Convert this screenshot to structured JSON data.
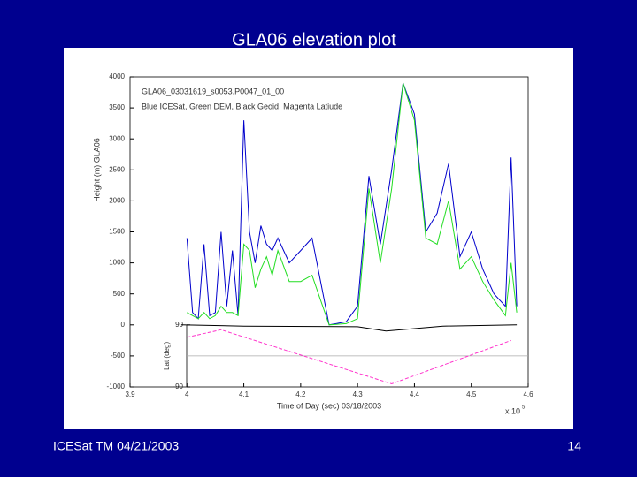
{
  "slide": {
    "title": "GLA06 elevation plot",
    "footer": "ICESat TM 04/21/2003",
    "page": "14"
  },
  "chart_data": {
    "type": "line",
    "title": "GLA06_03031619_s0053.P0047_01_00",
    "subtitle": "Blue ICESat, Green DEM, Black Geoid, Magenta Latiude",
    "x_label": "Time of Day (sec) 03/18/2003",
    "y_label": "Height (m) GLA06",
    "y2_label": "Lat (deg)",
    "x_scale_label": "x 10",
    "x_scale_exponent": "5",
    "xlim": [
      3.9,
      4.6
    ],
    "xticks": [
      3.9,
      4,
      4.1,
      4.2,
      4.3,
      4.4,
      4.5,
      4.6
    ],
    "ylim": [
      -1000,
      4000
    ],
    "yticks": [
      -1000,
      -500,
      0,
      500,
      1000,
      1500,
      2000,
      2500,
      3000,
      3500,
      4000
    ],
    "y2lim": [
      -90,
      90
    ],
    "y2ticks": [
      -90,
      90
    ],
    "series": [
      {
        "color": "#0000cc",
        "x": [
          4.0,
          4.01,
          4.02,
          4.03,
          4.04,
          4.05,
          4.06,
          4.07,
          4.08,
          4.09,
          4.1,
          4.11,
          4.12,
          4.13,
          4.14,
          4.15,
          4.16,
          4.18,
          4.2,
          4.22,
          4.25,
          4.28,
          4.3,
          4.32,
          4.34,
          4.36,
          4.38,
          4.4,
          4.42,
          4.44,
          4.46,
          4.48,
          4.5,
          4.52,
          4.54,
          4.56,
          4.57,
          4.58
        ],
        "values": [
          1400,
          200,
          100,
          1300,
          150,
          200,
          1500,
          300,
          1200,
          150,
          3300,
          1500,
          1000,
          1600,
          1300,
          1200,
          1400,
          1000,
          1200,
          1400,
          0,
          50,
          300,
          2400,
          1300,
          2500,
          3900,
          3400,
          1500,
          1800,
          2600,
          1100,
          1500,
          900,
          500,
          300,
          2700,
          300
        ]
      },
      {
        "color": "#22dd22",
        "x": [
          4.0,
          4.01,
          4.02,
          4.03,
          4.04,
          4.05,
          4.06,
          4.07,
          4.08,
          4.09,
          4.1,
          4.11,
          4.12,
          4.13,
          4.14,
          4.15,
          4.16,
          4.18,
          4.2,
          4.22,
          4.25,
          4.28,
          4.3,
          4.32,
          4.34,
          4.36,
          4.38,
          4.4,
          4.42,
          4.44,
          4.46,
          4.48,
          4.5,
          4.52,
          4.54,
          4.56,
          4.57,
          4.58
        ],
        "values": [
          200,
          150,
          100,
          200,
          100,
          150,
          300,
          200,
          200,
          150,
          1300,
          1200,
          600,
          900,
          1100,
          800,
          1200,
          700,
          700,
          800,
          0,
          20,
          100,
          2200,
          1000,
          2200,
          3900,
          3300,
          1400,
          1300,
          2000,
          900,
          1100,
          700,
          400,
          150,
          1000,
          200
        ]
      },
      {
        "color": "#000000",
        "x": [
          3.99,
          4.1,
          4.3,
          4.35,
          4.45,
          4.58
        ],
        "values": [
          0,
          -20,
          -30,
          -100,
          -20,
          0
        ]
      },
      {
        "color": "#ff33cc",
        "axis": "y2",
        "dashed": true,
        "x": [
          4.0,
          4.06,
          4.36,
          4.57
        ],
        "values": [
          54,
          76,
          -81,
          45
        ]
      }
    ]
  }
}
